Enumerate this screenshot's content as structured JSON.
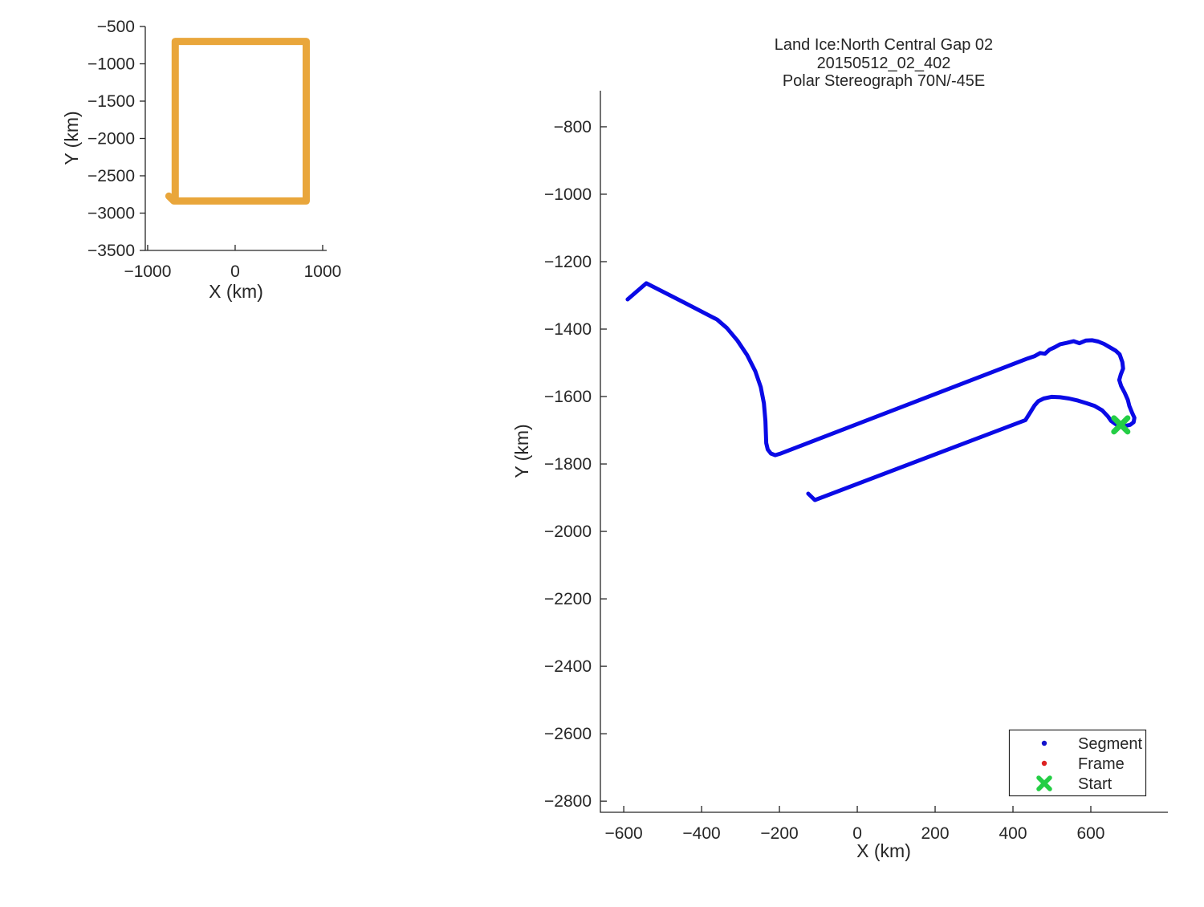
{
  "figure": {
    "background": "#FFFFFF",
    "text_color": "#262626",
    "axis_color": "#262626"
  },
  "chart_data": [
    {
      "id": "coverage_overview",
      "type": "line",
      "title": "",
      "xlabel": "X (km)",
      "ylabel": "Y (km)",
      "xlim": [
        -1027,
        1046
      ],
      "ylim": [
        -3500,
        -500
      ],
      "xticks": [
        -1000,
        0,
        1000
      ],
      "yticks": [
        -500,
        -1000,
        -1500,
        -2000,
        -2500,
        -3000,
        -3500
      ],
      "grid": false,
      "series": [
        {
          "name": "coverage-boundary",
          "color": "#E9A63B",
          "line_width": 9,
          "points": [
            [
              -757,
              -2772
            ],
            [
              -700,
              -2838
            ],
            [
              812,
              -2838
            ],
            [
              812,
              -700
            ],
            [
              -685,
              -700
            ],
            [
              -685,
              -2838
            ]
          ]
        }
      ]
    },
    {
      "id": "flight_line",
      "type": "line",
      "title_lines": [
        "Land Ice:North Central Gap 02",
        "20150512_02_402",
        "Polar Stereograph 70N/-45E"
      ],
      "xlabel": "X (km)",
      "ylabel": "Y (km)",
      "xlim": [
        -660,
        798
      ],
      "ylim": [
        -2833,
        -693
      ],
      "xticks": [
        -600,
        -400,
        -200,
        0,
        200,
        400,
        600
      ],
      "yticks": [
        -800,
        -1000,
        -1200,
        -1400,
        -1600,
        -1800,
        -2000,
        -2200,
        -2400,
        -2600,
        -2800
      ],
      "grid": false,
      "series": [
        {
          "name": "segment-track-west",
          "legend": "Segment",
          "color": "#0A0AE6",
          "line_width": 5,
          "points": [
            [
              -590,
              -1312
            ],
            [
              -542,
              -1264
            ],
            [
              -450,
              -1318
            ],
            [
              -360,
              -1372
            ],
            [
              -335,
              -1397
            ],
            [
              -308,
              -1434
            ],
            [
              -283,
              -1477
            ],
            [
              -262,
              -1525
            ],
            [
              -248,
              -1572
            ],
            [
              -240,
              -1620
            ],
            [
              -236,
              -1672
            ],
            [
              -234,
              -1738
            ],
            [
              -230,
              -1757
            ],
            [
              -222,
              -1769
            ],
            [
              -211,
              -1774
            ],
            [
              -199,
              -1770
            ],
            [
              438,
              -1487
            ],
            [
              456,
              -1480
            ],
            [
              470,
              -1471
            ],
            [
              482,
              -1473
            ],
            [
              494,
              -1461
            ],
            [
              507,
              -1454
            ],
            [
              521,
              -1445
            ],
            [
              538,
              -1441
            ],
            [
              556,
              -1436
            ],
            [
              571,
              -1442
            ],
            [
              587,
              -1434
            ],
            [
              604,
              -1433
            ],
            [
              619,
              -1437
            ],
            [
              634,
              -1444
            ],
            [
              649,
              -1454
            ],
            [
              664,
              -1464
            ],
            [
              674,
              -1475
            ],
            [
              681,
              -1498
            ],
            [
              683,
              -1517
            ],
            [
              677,
              -1535
            ],
            [
              673,
              -1551
            ],
            [
              678,
              -1569
            ],
            [
              687,
              -1589
            ],
            [
              695,
              -1610
            ],
            [
              699,
              -1628
            ],
            [
              706,
              -1648
            ],
            [
              712,
              -1663
            ],
            [
              710,
              -1676
            ],
            [
              701,
              -1684
            ],
            [
              689,
              -1687
            ],
            [
              677,
              -1684
            ]
          ]
        },
        {
          "name": "segment-track-east",
          "legend": "Segment",
          "color": "#0A0AE6",
          "line_width": 5,
          "points": [
            [
              677,
              -1684
            ],
            [
              664,
              -1682
            ],
            [
              652,
              -1672
            ],
            [
              644,
              -1659
            ],
            [
              629,
              -1641
            ],
            [
              610,
              -1628
            ],
            [
              589,
              -1620
            ],
            [
              567,
              -1612
            ],
            [
              544,
              -1606
            ],
            [
              521,
              -1602
            ],
            [
              499,
              -1601
            ],
            [
              479,
              -1606
            ],
            [
              465,
              -1614
            ],
            [
              455,
              -1627
            ],
            [
              444,
              -1648
            ],
            [
              432,
              -1670
            ],
            [
              -109,
              -1907
            ],
            [
              -126,
              -1888
            ]
          ]
        }
      ],
      "start_marker": {
        "label": "Start",
        "x": 677,
        "y": -1684,
        "color": "#24CE45",
        "size": 17
      },
      "legend": {
        "position": "southeast",
        "entries": [
          {
            "label": "Segment",
            "marker": "dot",
            "color": "#1414CC"
          },
          {
            "label": "Frame",
            "marker": "dot",
            "color": "#DD2222"
          },
          {
            "label": "Start",
            "marker": "x",
            "color": "#24CE45"
          }
        ]
      }
    }
  ]
}
